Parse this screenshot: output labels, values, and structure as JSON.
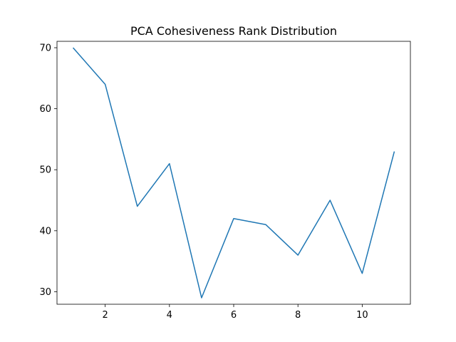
{
  "chart_data": {
    "type": "line",
    "title": "PCA Cohesiveness Rank Distribution",
    "xlabel": "",
    "ylabel": "",
    "x": [
      1,
      2,
      3,
      4,
      5,
      6,
      7,
      8,
      9,
      10,
      11
    ],
    "series": [
      {
        "values": [
          70,
          64,
          44,
          51,
          29,
          42,
          41,
          36,
          45,
          33,
          53
        ],
        "color": "#1f77b4"
      }
    ],
    "xlim": [
      0.5,
      11.5
    ],
    "ylim": [
      27.95,
      71.05
    ],
    "xticks": [
      2,
      4,
      6,
      8,
      10
    ],
    "yticks": [
      30,
      40,
      50,
      60,
      70
    ],
    "grid": false,
    "legend": "none"
  }
}
